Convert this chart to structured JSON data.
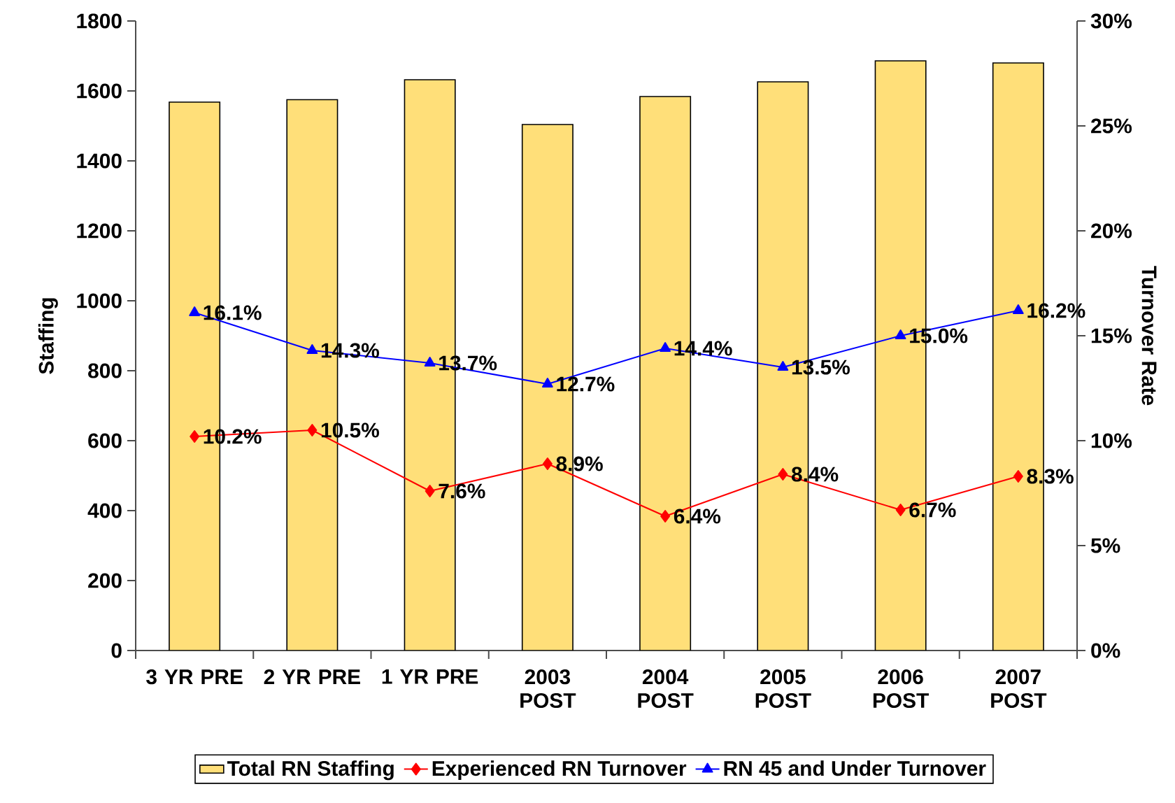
{
  "chart_data": {
    "type": "bar",
    "categories": [
      "3 YR PRE",
      "2 YR PRE",
      "1 YR PRE",
      "2003 POST",
      "2004 POST",
      "2005 POST",
      "2006 POST",
      "2007 POST"
    ],
    "series": [
      {
        "name": "Total RN Staffing",
        "color": "#ffdf79",
        "values": [
          1568,
          1575,
          1632,
          1504,
          1584,
          1626,
          1686,
          1680
        ]
      },
      {
        "name": "Experienced RN Turnover",
        "type": "line",
        "axis": "y2",
        "color": "#ff0000",
        "marker": "diamond",
        "values": [
          10.2,
          10.5,
          7.6,
          8.9,
          6.4,
          8.4,
          6.7,
          8.3
        ],
        "value_labels": [
          "10.2%",
          "10.5%",
          "7.6%",
          "8.9%",
          "6.4%",
          "8.4%",
          "6.7%",
          "8.3%"
        ]
      },
      {
        "name": "RN 45 and Under Turnover",
        "type": "line",
        "axis": "y2",
        "color": "#0000ff",
        "marker": "triangle",
        "values": [
          16.1,
          14.3,
          13.7,
          12.7,
          14.4,
          13.5,
          15.0,
          16.2
        ],
        "value_labels": [
          "16.1%",
          "14.3%",
          "13.7%",
          "12.7%",
          "14.4%",
          "13.5%",
          "15.0%",
          "16.2%"
        ]
      }
    ],
    "ylabel": "Staffing",
    "y2label": "Turnover Rate",
    "ylim": [
      0,
      1800
    ],
    "yticks": [
      0,
      200,
      400,
      600,
      800,
      1000,
      1200,
      1400,
      1600,
      1800
    ],
    "y2lim": [
      0,
      30
    ],
    "y2ticks": [
      {
        "value": 0,
        "label": "0%"
      },
      {
        "value": 5,
        "label": "5%"
      },
      {
        "value": 10,
        "label": "10%"
      },
      {
        "value": 15,
        "label": "15%"
      },
      {
        "value": 20,
        "label": "20%"
      },
      {
        "value": 25,
        "label": "25%"
      },
      {
        "value": 30,
        "label": "30%"
      }
    ],
    "legend": "bottom",
    "grid": false
  }
}
